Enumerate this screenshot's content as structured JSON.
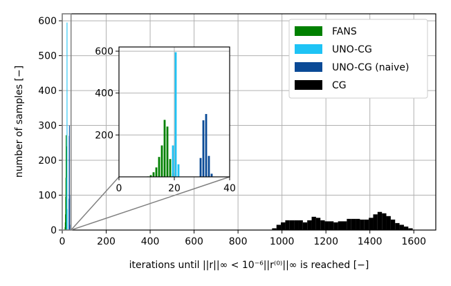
{
  "chart_data": {
    "type": "bar",
    "xlabel": "iterations until ||r||∞ < 10⁻⁶||r⁽⁰⁾||∞ is reached [−]",
    "ylabel": "number of samples [−]",
    "xlim": [
      0,
      1700
    ],
    "ylim": [
      0,
      620
    ],
    "xticks": [
      0,
      200,
      400,
      600,
      800,
      1000,
      1200,
      1400,
      1600
    ],
    "yticks": [
      0,
      100,
      200,
      300,
      400,
      500,
      600
    ],
    "grid": true,
    "legend": "top-right",
    "series": [
      {
        "name": "FANS",
        "color": "#008000",
        "bins": [
          [
            10,
            2
          ],
          [
            11,
            8
          ],
          [
            12,
            22
          ],
          [
            13,
            45
          ],
          [
            14,
            95
          ],
          [
            15,
            150
          ],
          [
            16,
            272
          ],
          [
            17,
            240
          ],
          [
            18,
            85
          ],
          [
            19,
            18
          ]
        ]
      },
      {
        "name": "UNO-CG",
        "color": "#1ec3f5",
        "bins": [
          [
            19,
            150
          ],
          [
            20,
            595
          ],
          [
            21,
            60
          ]
        ]
      },
      {
        "name": "UNO-CG (naive)",
        "color": "#0a4a96",
        "bins": [
          [
            29,
            90
          ],
          [
            30,
            270
          ],
          [
            31,
            300
          ],
          [
            32,
            100
          ],
          [
            33,
            15
          ]
        ]
      },
      {
        "name": "CG",
        "color": "#000000",
        "bins": [
          [
            955,
            5
          ],
          [
            975,
            15
          ],
          [
            995,
            22
          ],
          [
            1015,
            28
          ],
          [
            1035,
            28
          ],
          [
            1055,
            28
          ],
          [
            1075,
            28
          ],
          [
            1095,
            22
          ],
          [
            1115,
            28
          ],
          [
            1135,
            38
          ],
          [
            1155,
            35
          ],
          [
            1175,
            28
          ],
          [
            1195,
            25
          ],
          [
            1215,
            25
          ],
          [
            1235,
            22
          ],
          [
            1255,
            25
          ],
          [
            1275,
            25
          ],
          [
            1295,
            32
          ],
          [
            1315,
            32
          ],
          [
            1335,
            32
          ],
          [
            1355,
            30
          ],
          [
            1375,
            30
          ],
          [
            1395,
            35
          ],
          [
            1415,
            45
          ],
          [
            1435,
            52
          ],
          [
            1455,
            48
          ],
          [
            1475,
            40
          ],
          [
            1495,
            30
          ],
          [
            1515,
            20
          ],
          [
            1535,
            15
          ],
          [
            1555,
            10
          ],
          [
            1575,
            5
          ]
        ],
        "bin_width": 20
      }
    ],
    "inset": {
      "xlim": [
        0,
        40
      ],
      "ylim": [
        0,
        620
      ],
      "xticks": [
        0,
        20,
        40
      ],
      "yticks": [
        200,
        400,
        600
      ]
    }
  }
}
